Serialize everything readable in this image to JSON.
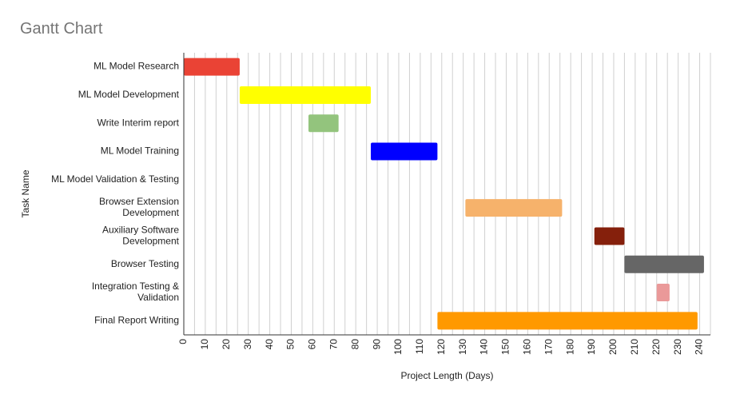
{
  "chart_data": {
    "type": "bar",
    "orientation": "horizontal-gantt",
    "title": "Gantt Chart",
    "xlabel": "Project Length (Days)",
    "ylabel": "Task Name",
    "xlim": [
      0,
      245
    ],
    "xticks": [
      0,
      10,
      20,
      30,
      40,
      50,
      60,
      70,
      80,
      90,
      100,
      110,
      120,
      130,
      140,
      150,
      160,
      170,
      180,
      190,
      200,
      210,
      220,
      230,
      240
    ],
    "grid": true,
    "gridStep": 5,
    "legend": "none",
    "tasks": [
      {
        "name": "ML Model Research",
        "start": 0,
        "end": 26,
        "color": "#ea4335"
      },
      {
        "name": "ML Model Development",
        "start": 26,
        "end": 87,
        "color": "#ffff00"
      },
      {
        "name": "Write Interim report",
        "start": 58,
        "end": 72,
        "color": "#93c47d"
      },
      {
        "name": "ML Model Training",
        "start": 87,
        "end": 118,
        "color": "#0000ff"
      },
      {
        "name": "ML Model Validation & Testing",
        "start": null,
        "end": null,
        "color": ""
      },
      {
        "name": "Browser Extension\nDevelopment",
        "start": 131,
        "end": 176,
        "color": "#f6b26b"
      },
      {
        "name": "Auxiliary Software\nDevelopment",
        "start": 191,
        "end": 205,
        "color": "#85200c"
      },
      {
        "name": "Browser Testing",
        "start": 205,
        "end": 242,
        "color": "#666666"
      },
      {
        "name": "Integration Testing &\nValidation",
        "start": 220,
        "end": 226,
        "color": "#ea9999"
      },
      {
        "name": "Final Report Writing",
        "start": 118,
        "end": 239,
        "color": "#ff9900"
      }
    ]
  }
}
